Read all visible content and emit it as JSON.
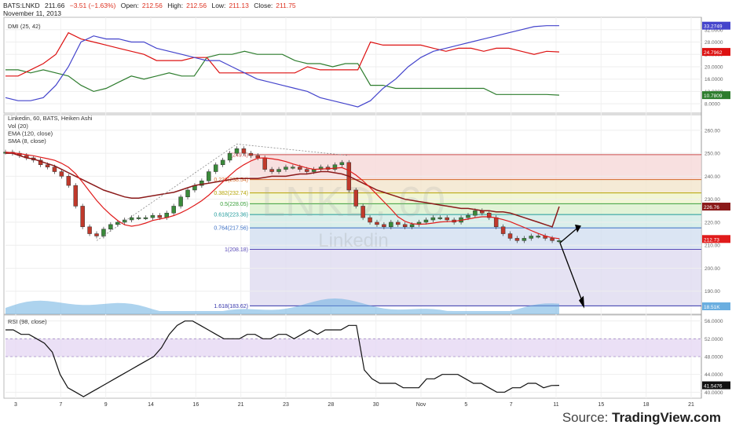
{
  "header": {
    "symbol": "BATS:LNKD",
    "last": "211.66",
    "change": "−3.51 (−1.63%)",
    "open_label": "Open:",
    "open": "212.56",
    "high_label": "High:",
    "high": "212.56",
    "low_label": "Low:",
    "low": "211.13",
    "close_label": "Close:",
    "close": "211.75",
    "date": "November 11, 2013"
  },
  "source": {
    "prefix": "Source: ",
    "brand": "TradingView.com"
  },
  "colors": {
    "up": "#3a8a3a",
    "down": "#c0392b",
    "ema": "#8b1a1a",
    "sma": "#e01b1b",
    "dmi_plus": "#2e7d2e",
    "dmi_minus": "#dd1111",
    "adx": "#4444cc",
    "volume": "#6aaee0",
    "rsi": "#111111",
    "rsi_band": "#e6d8f4",
    "arrow": "#000000"
  },
  "chart_data": [
    {
      "type": "line",
      "title": "DMI (25, 42)",
      "ylim": [
        6,
        35
      ],
      "y_ticks": [
        "32.0000",
        "28.0000",
        "24.0000",
        "20.0000",
        "16.0000",
        "12.0000",
        "8.0000"
      ],
      "series": [
        {
          "name": "+DI",
          "values": [
            19,
            19,
            18,
            19,
            18,
            17,
            14,
            12,
            13,
            15,
            17,
            16,
            17,
            18,
            17,
            17,
            23,
            24,
            24,
            25,
            24,
            24,
            24,
            22,
            21,
            21,
            20,
            21,
            21,
            14,
            14,
            13,
            13,
            13,
            13,
            13,
            13,
            13,
            13,
            11,
            11,
            11,
            11,
            11,
            10.8
          ]
        },
        {
          "name": "-DI",
          "values": [
            17,
            17,
            19,
            21,
            24,
            31,
            29,
            28,
            27,
            26,
            25,
            24,
            22,
            22,
            22,
            23,
            23,
            18,
            18,
            18,
            18,
            18,
            18,
            18,
            20,
            19,
            19,
            19,
            19,
            28,
            27,
            27,
            27,
            27,
            26,
            25,
            26,
            26,
            25,
            26,
            26,
            25,
            24,
            25,
            24.8
          ]
        },
        {
          "name": "ADX",
          "values": [
            10,
            9,
            9,
            10,
            14,
            20,
            28,
            30,
            29,
            29,
            28,
            28,
            26,
            25,
            24,
            23,
            22,
            22,
            20,
            18,
            16,
            15,
            14,
            13,
            12,
            10,
            9,
            8,
            7,
            9,
            13,
            16,
            20,
            23,
            25,
            26,
            27,
            28,
            29,
            30,
            31,
            32,
            33,
            33.3,
            33.3
          ]
        }
      ],
      "last_labels": [
        "33.2749",
        "24.7962",
        "10.7809"
      ]
    },
    {
      "type": "line",
      "title": "Linkedin, 60, BATS, Heiken Ashi",
      "indicators": [
        "Vol (20)",
        "EMA (120, close)",
        "SMA (8, close)"
      ],
      "ylim": [
        180,
        262
      ],
      "y_ticks": [
        "260.00",
        "250.00",
        "240.00",
        "230.00",
        "220.00",
        "210.00",
        "200.00",
        "190.00"
      ],
      "x_ticks": [
        "3",
        "7",
        "9",
        "14",
        "16",
        "21",
        "23",
        "28",
        "30",
        "Nov",
        "5",
        "7",
        "11",
        "15",
        "18",
        "21"
      ],
      "price": [
        250.5,
        250,
        249,
        248,
        247,
        245,
        244,
        242,
        240,
        236,
        227,
        218,
        215,
        214,
        217,
        219,
        220,
        221,
        222,
        222,
        222,
        223,
        222,
        224,
        227,
        231,
        234,
        236,
        238,
        242,
        245,
        247,
        250,
        252,
        250,
        249,
        248,
        243,
        242,
        243,
        244,
        244,
        243,
        242,
        243,
        244,
        243,
        245,
        246,
        234,
        227,
        222,
        220,
        219,
        218,
        220,
        219,
        218,
        219,
        220,
        221,
        222,
        222,
        221,
        220,
        222,
        223,
        225,
        224,
        222,
        218,
        215,
        213,
        212,
        213,
        214,
        214,
        213,
        212,
        212
      ],
      "ema": [
        250,
        250,
        249,
        248,
        247.5,
        246.5,
        245.5,
        244.5,
        243,
        241.5,
        240,
        238.5,
        237,
        235.5,
        234,
        233,
        232,
        231,
        230.5,
        230.5,
        231,
        231.5,
        232,
        232.5,
        233,
        234,
        235,
        236,
        236.5,
        237,
        237.5,
        238,
        238.5,
        239,
        239,
        239,
        239,
        239.5,
        240,
        240,
        240,
        240.5,
        241,
        241,
        241.5,
        242,
        242,
        241.5,
        241,
        240,
        238.5,
        237,
        235.5,
        234,
        233,
        232,
        231,
        230,
        229.5,
        229,
        228.5,
        228,
        227.5,
        227,
        226.5,
        226,
        226,
        225.5,
        225,
        225,
        224.5,
        224.5,
        224,
        223,
        222,
        221,
        220,
        219,
        218,
        226.8
      ],
      "fib_levels": [
        {
          "label": "0(249.4)",
          "value": 249.4
        },
        {
          "label": "0.236(238.54)",
          "value": 238.54
        },
        {
          "label": "0.382(232.74)",
          "value": 232.74
        },
        {
          "label": "0.5(228.05)",
          "value": 228.05
        },
        {
          "label": "0.618(223.36)",
          "value": 223.36
        },
        {
          "label": "0.764(217.56)",
          "value": 217.56
        },
        {
          "label": "1(208.18)",
          "value": 208.18
        },
        {
          "label": "1.618(183.62)",
          "value": 183.62
        }
      ],
      "last_labels": [
        "226.76",
        "212.73",
        "18.51K"
      ],
      "watermark": {
        "title": "LNKD, 60",
        "subtitle": "Linkedin"
      }
    },
    {
      "type": "line",
      "title": "RSI (98, close)",
      "ylim": [
        39,
        57
      ],
      "band": [
        48,
        52
      ],
      "y_ticks": [
        "56.0000",
        "52.0000",
        "48.0000",
        "44.0000",
        "40.0000"
      ],
      "values": [
        54,
        54,
        53,
        53,
        52,
        51,
        49,
        44,
        41,
        40,
        39,
        40,
        41,
        42,
        43,
        44,
        45,
        46,
        47,
        48,
        50,
        53,
        55,
        56,
        56,
        55,
        54,
        53,
        52,
        52,
        52,
        53,
        53,
        52,
        52,
        53,
        53,
        52,
        53,
        54,
        53,
        54,
        54,
        54,
        55,
        55,
        45,
        43,
        42,
        42,
        42,
        41,
        41,
        41,
        43,
        43,
        44,
        44,
        44,
        43,
        42,
        42,
        41,
        40,
        40,
        41,
        41,
        42,
        42,
        41,
        41.5,
        41.55
      ],
      "last_label": "41.5476"
    }
  ]
}
